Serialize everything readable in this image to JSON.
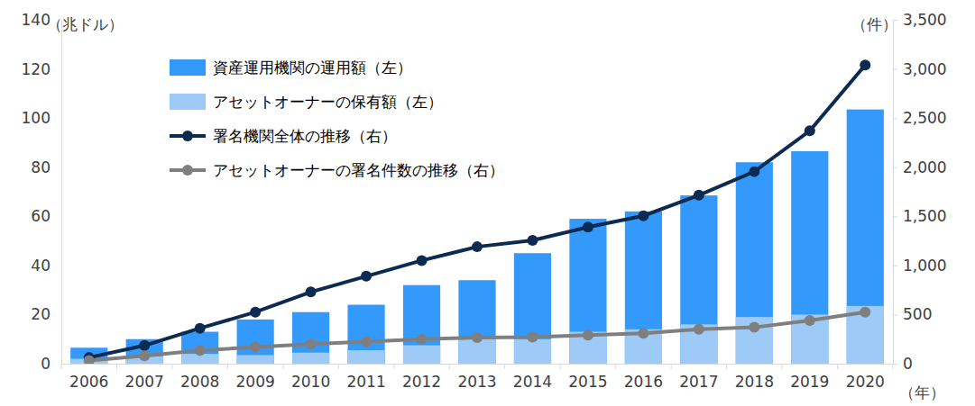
{
  "chart_data": {
    "type": "bar",
    "ylabel": "（兆ドル）",
    "y2label": "（件）",
    "xlabel": "（年）",
    "categories": [
      "2006",
      "2007",
      "2008",
      "2009",
      "2010",
      "2011",
      "2012",
      "2013",
      "2014",
      "2015",
      "2016",
      "2017",
      "2018",
      "2019",
      "2020"
    ],
    "series": [
      {
        "name": "資産運用機関の運用額（左）",
        "type": "bar",
        "color": "#3399fb",
        "values": [
          6.5,
          10,
          13,
          18,
          21,
          24,
          32,
          34,
          45,
          59,
          62,
          68.5,
          82,
          86.5,
          103.5
        ]
      },
      {
        "name": "アセットオーナーの保有額（左）",
        "type": "bar",
        "color": "#9dcaf7",
        "values": [
          2,
          3,
          4,
          3.5,
          4.5,
          5.5,
          7.5,
          10,
          10,
          13,
          14,
          16,
          19,
          20,
          23.5
        ]
      },
      {
        "name": "署名機関全体の推移（右）",
        "type": "line",
        "axis": "y2",
        "color": "#0c2b52",
        "marker": "circle",
        "values": [
          63,
          185,
          360,
          525,
          730,
          890,
          1050,
          1190,
          1255,
          1390,
          1505,
          1715,
          1955,
          2370,
          3040
        ]
      },
      {
        "name": "アセットオーナーの署名件数の推移（右）",
        "type": "line",
        "axis": "y2",
        "color": "#7f7f7f",
        "marker": "circle",
        "values": [
          32,
          80,
          135,
          170,
          200,
          225,
          250,
          265,
          270,
          290,
          310,
          350,
          370,
          440,
          525
        ]
      }
    ],
    "ylim": [
      0,
      140
    ],
    "yticks": [
      0,
      20,
      40,
      60,
      80,
      100,
      120,
      140
    ],
    "y2lim": [
      0,
      3500
    ],
    "y2ticks": [
      0,
      500,
      {
        "value": 1000,
        "label": "1,000"
      },
      {
        "value": 1500,
        "label": "1,500"
      },
      {
        "value": 2000,
        "label": "2,000"
      },
      {
        "value": 2500,
        "label": "2,500"
      },
      {
        "value": 3000,
        "label": "3,000"
      },
      {
        "value": 3500,
        "label": "3,500"
      }
    ],
    "legend": "upper left",
    "grid": false
  }
}
